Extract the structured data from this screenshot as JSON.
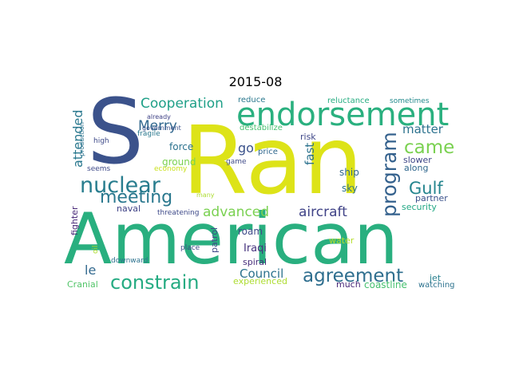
{
  "title": "2015-08",
  "palette": "viridis",
  "words": [
    {
      "text": "Ran",
      "color": "#dde318"
    },
    {
      "text": "American",
      "color": "#29af7f"
    },
    {
      "text": "S",
      "color": "#3b528b"
    },
    {
      "text": "endorsement",
      "color": "#2ab07f"
    },
    {
      "text": "nuclear",
      "color": "#287d8e"
    },
    {
      "text": "agreement",
      "color": "#2e6e8e"
    },
    {
      "text": "constrain",
      "color": "#25ab82"
    },
    {
      "text": "meeting",
      "color": "#2a788e"
    },
    {
      "text": "program",
      "color": "#34618d"
    },
    {
      "text": "Cooperation",
      "color": "#1fa088"
    },
    {
      "text": "came",
      "color": "#7ad151"
    },
    {
      "text": "Gulf",
      "color": "#25858e"
    },
    {
      "text": "Merry",
      "color": "#31688e"
    },
    {
      "text": "aircraft",
      "color": "#404387"
    },
    {
      "text": "attended",
      "color": "#2a788e"
    },
    {
      "text": "advanced",
      "color": "#7ad151"
    },
    {
      "text": "Council",
      "color": "#2c728e"
    },
    {
      "text": "matter",
      "color": "#2c728e"
    },
    {
      "text": "fast",
      "color": "#2c728e"
    },
    {
      "text": "go",
      "color": "#3b528b"
    },
    {
      "text": "le",
      "color": "#31688e"
    },
    {
      "text": "Iraqi",
      "color": "#46337e"
    },
    {
      "text": "force",
      "color": "#2c728e"
    },
    {
      "text": "ground",
      "color": "#7ad151"
    },
    {
      "text": "roam",
      "color": "#3e4a89"
    },
    {
      "text": "fighter",
      "color": "#482878"
    },
    {
      "text": "patrol",
      "color": "#3f4788"
    },
    {
      "text": "ship",
      "color": "#31688e"
    },
    {
      "text": "sky",
      "color": "#2c728e"
    },
    {
      "text": "experienced",
      "color": "#addc30"
    },
    {
      "text": "coastline",
      "color": "#46c06f"
    },
    {
      "text": "security",
      "color": "#22a884"
    },
    {
      "text": "jet",
      "color": "#277f8e"
    },
    {
      "text": "much",
      "color": "#482878"
    },
    {
      "text": "Cranial",
      "color": "#52c569"
    },
    {
      "text": "naval",
      "color": "#404387"
    },
    {
      "text": "spiral",
      "color": "#472d7b"
    },
    {
      "text": "water",
      "color": "#b5de2b"
    },
    {
      "text": "along",
      "color": "#31688e"
    },
    {
      "text": "partner",
      "color": "#3b528b"
    },
    {
      "text": "slower",
      "color": "#3f4788"
    },
    {
      "text": "risk",
      "color": "#3f4788"
    },
    {
      "text": "price",
      "color": "#31688e"
    },
    {
      "text": "watching",
      "color": "#2c728e"
    },
    {
      "text": "reluctance",
      "color": "#26ad81"
    },
    {
      "text": "reduce",
      "color": "#2a788e"
    },
    {
      "text": "sometimes",
      "color": "#238a8d"
    },
    {
      "text": "destabilize",
      "color": "#46c06f"
    },
    {
      "text": "already",
      "color": "#414487"
    },
    {
      "text": "fragile",
      "color": "#2a788e"
    },
    {
      "text": "government",
      "color": "#3b528b"
    },
    {
      "text": "economy",
      "color": "#cae11f"
    },
    {
      "text": "production",
      "color": "#2c728e"
    },
    {
      "text": "high",
      "color": "#3e4a89"
    },
    {
      "text": "seems",
      "color": "#3e4a89"
    },
    {
      "text": "game",
      "color": "#3e4a89"
    },
    {
      "text": "many",
      "color": "#addc30"
    },
    {
      "text": "threatening",
      "color": "#3e4a89"
    },
    {
      "text": "place",
      "color": "#3e4a89"
    },
    {
      "text": "downward",
      "color": "#2c728e"
    },
    {
      "text": "oil",
      "color": "#addc30"
    }
  ]
}
